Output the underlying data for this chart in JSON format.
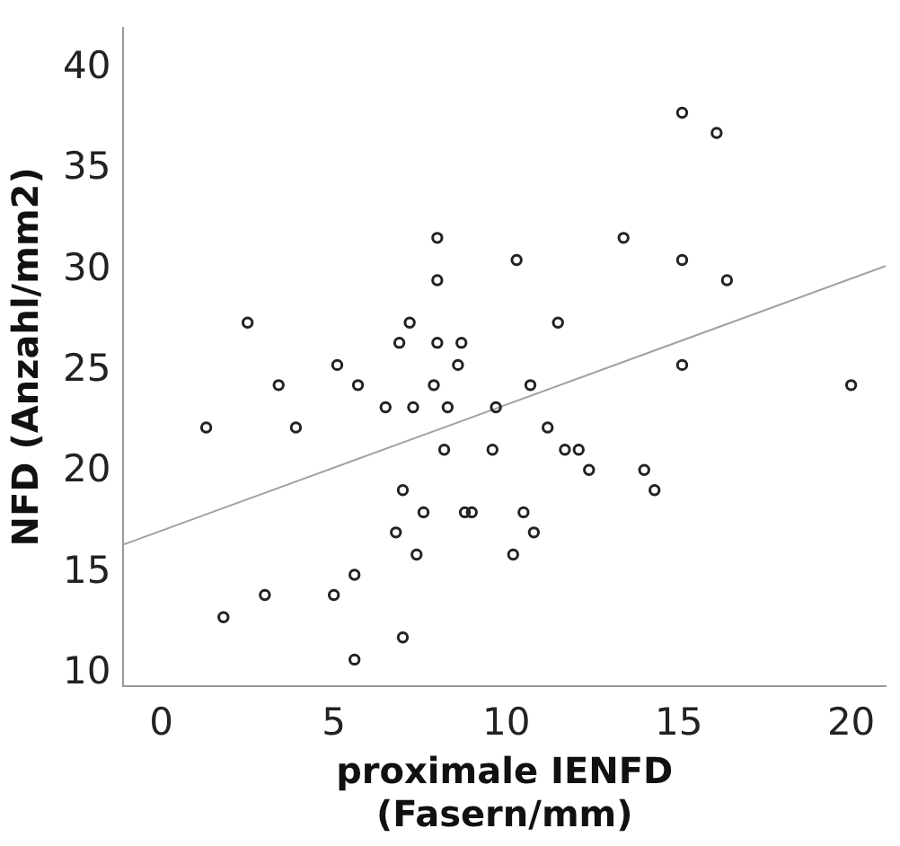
{
  "chart_data": {
    "type": "scatter",
    "xlabel": "proximale IENFD\n(Fasern/mm)",
    "ylabel": "NFD (Anzahl/mm2)",
    "xlim": [
      -1.1,
      21
    ],
    "ylim": [
      9.4,
      42
    ],
    "xticks": [
      0,
      5,
      10,
      15,
      20
    ],
    "yticks": [
      10,
      15,
      20,
      25,
      30,
      35,
      40
    ],
    "grid": false,
    "legend": false,
    "marker": "circle",
    "series": [
      {
        "color": "#222222",
        "x": [
          8.0,
          10.3,
          8.0,
          2.5,
          7.2,
          6.9,
          8.0,
          8.7,
          5.1,
          8.6,
          15.1,
          16.1,
          13.4,
          15.1,
          16.4,
          11.5,
          15.1,
          3.4,
          5.7,
          7.9,
          1.3,
          3.9,
          6.5,
          7.3,
          8.3,
          9.7,
          8.2,
          9.6,
          7.0,
          7.6,
          8.8,
          9.0,
          6.8,
          7.4,
          10.2,
          5.6,
          3.0,
          5.0,
          1.8,
          7.0,
          5.6,
          10.7,
          20.0,
          11.2,
          11.7,
          12.1,
          12.4,
          14.0,
          14.3,
          10.5,
          10.8
        ],
        "values": [
          31.6,
          30.5,
          29.5,
          27.4,
          27.4,
          26.4,
          26.4,
          26.4,
          25.3,
          25.3,
          37.8,
          36.8,
          31.6,
          30.5,
          29.5,
          27.4,
          25.3,
          24.3,
          24.3,
          24.3,
          22.2,
          22.2,
          23.2,
          23.2,
          23.2,
          23.2,
          21.1,
          21.1,
          19.1,
          18.0,
          18.0,
          18.0,
          17.0,
          15.9,
          15.9,
          14.9,
          13.9,
          13.9,
          12.8,
          11.8,
          10.7,
          24.3,
          24.3,
          22.2,
          21.1,
          21.1,
          20.1,
          20.1,
          19.1,
          18.0,
          17.0
        ]
      },
      {
        "type": "line",
        "color": "#a0a0a0",
        "marker": "none",
        "x": [
          -1.1,
          21
        ],
        "values": [
          16.4,
          30.2
        ]
      }
    ]
  }
}
